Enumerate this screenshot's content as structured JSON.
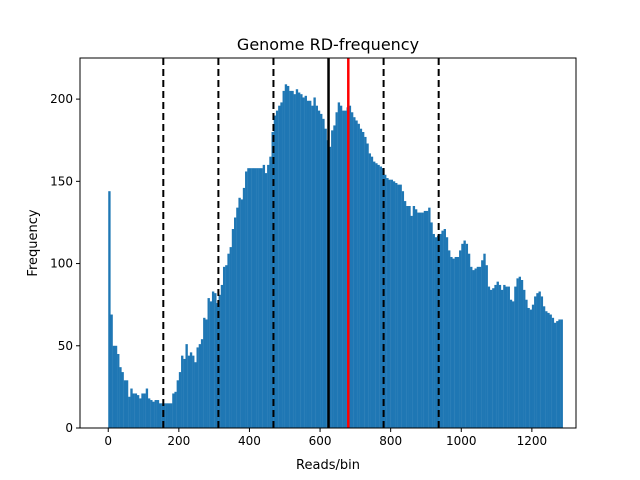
{
  "chart_data": {
    "type": "bar",
    "title": "Genome RD-frequency",
    "xlabel": "Reads/bin",
    "ylabel": "Frequency",
    "xlim": [
      -80,
      1325
    ],
    "ylim": [
      0,
      225
    ],
    "xticks": [
      0,
      200,
      400,
      600,
      800,
      1000,
      1200
    ],
    "yticks": [
      0,
      50,
      100,
      150,
      200
    ],
    "bar_color": "#1f77b4",
    "bin_width": 6.25,
    "bins_start": 0,
    "values": [
      144,
      69,
      50,
      50,
      45,
      37,
      34,
      29,
      29,
      19,
      24,
      21,
      21,
      20,
      18,
      21,
      21,
      24,
      18,
      17,
      16,
      17,
      17,
      15,
      15,
      15,
      15,
      15,
      15,
      21,
      22,
      29,
      34,
      44,
      42,
      51,
      44,
      46,
      44,
      40,
      49,
      51,
      54,
      67,
      66,
      79,
      77,
      83,
      82,
      76,
      81,
      87,
      98,
      99,
      106,
      110,
      121,
      128,
      134,
      140,
      139,
      146,
      156,
      158,
      158,
      158,
      158,
      158,
      158,
      158,
      160,
      155,
      160,
      165,
      180,
      190,
      193,
      196,
      198,
      205,
      209,
      208,
      205,
      205,
      203,
      206,
      204,
      203,
      201,
      202,
      199,
      199,
      196,
      201,
      196,
      193,
      191,
      188,
      182,
      175,
      171,
      181,
      184,
      192,
      198,
      196,
      193,
      193,
      195,
      196,
      192,
      189,
      187,
      185,
      182,
      180,
      177,
      173,
      167,
      165,
      162,
      161,
      160,
      159,
      158,
      154,
      152,
      151,
      151,
      150,
      149,
      148,
      148,
      144,
      138,
      135,
      135,
      129,
      135,
      133,
      131,
      131,
      131,
      132,
      132,
      134,
      125,
      118,
      116,
      117,
      118,
      120,
      121,
      116,
      108,
      104,
      103,
      104,
      104,
      108,
      112,
      114,
      112,
      106,
      98,
      96,
      97,
      98,
      98,
      102,
      106,
      99,
      86,
      84,
      85,
      87,
      89,
      87,
      84,
      87,
      86,
      86,
      78,
      77,
      86,
      91,
      92,
      90,
      84,
      78,
      73,
      72,
      75,
      80,
      82,
      83,
      80,
      74,
      71,
      70,
      69,
      67,
      64,
      65,
      66,
      66
    ],
    "vertical_lines": [
      {
        "x": 156,
        "style": "dashed",
        "color": "#000000"
      },
      {
        "x": 312,
        "style": "dashed",
        "color": "#000000"
      },
      {
        "x": 468,
        "style": "dashed",
        "color": "#000000"
      },
      {
        "x": 624,
        "style": "solid",
        "color": "#000000"
      },
      {
        "x": 680,
        "style": "solid",
        "color": "#ff0000"
      },
      {
        "x": 780,
        "style": "dashed",
        "color": "#000000"
      },
      {
        "x": 936,
        "style": "dashed",
        "color": "#000000"
      }
    ],
    "grid": false,
    "legend": "none"
  }
}
